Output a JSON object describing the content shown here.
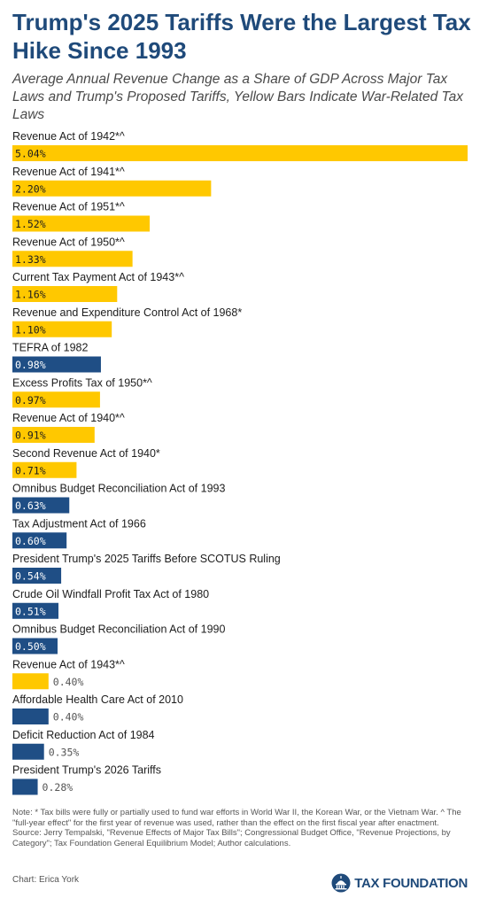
{
  "title": "Trump's 2025 Tariffs Were the Largest Tax Hike Since 1993",
  "subtitle": "Average Annual Revenue Change as a Share of GDP Across Major Tax Laws and Trump's Proposed Tariffs, Yellow Bars Indicate War-Related Tax Laws",
  "colors": {
    "war": "#ffc800",
    "non_war": "#1f4e85",
    "title": "#1f4a7a"
  },
  "chart_data": {
    "type": "bar",
    "orientation": "horizontal",
    "unit": "% of GDP",
    "xlim": [
      0,
      5.04
    ],
    "grid": false,
    "categories": [
      "Revenue Act of 1942*^",
      "Revenue Act of 1941*^",
      "Revenue Act of 1951*^",
      "Revenue Act of 1950*^",
      "Current Tax Payment Act of 1943*^",
      "Revenue and Expenditure Control Act of 1968*",
      "TEFRA of 1982",
      "Excess Profits Tax of 1950*^",
      "Revenue Act of 1940*^",
      "Second Revenue Act of 1940*",
      "Omnibus Budget Reconciliation Act of 1993",
      "Tax Adjustment Act of 1966",
      "President Trump's 2025 Tariffs Before SCOTUS Ruling",
      "Crude Oil Windfall Profit Tax Act of 1980",
      "Omnibus Budget Reconciliation Act of 1990",
      "Revenue Act of 1943*^",
      "Affordable Health Care Act of 2010",
      "Deficit Reduction Act of 1984",
      "President Trump's 2026 Tariffs"
    ],
    "values": [
      5.04,
      2.2,
      1.52,
      1.33,
      1.16,
      1.1,
      0.98,
      0.97,
      0.91,
      0.71,
      0.63,
      0.6,
      0.54,
      0.51,
      0.5,
      0.4,
      0.4,
      0.35,
      0.28
    ],
    "value_labels": [
      "5.04%",
      "2.20%",
      "1.52%",
      "1.33%",
      "1.16%",
      "1.10%",
      "0.98%",
      "0.97%",
      "0.91%",
      "0.71%",
      "0.63%",
      "0.60%",
      "0.54%",
      "0.51%",
      "0.50%",
      "0.40%",
      "0.40%",
      "0.35%",
      "0.28%"
    ],
    "war_related": [
      true,
      true,
      true,
      true,
      true,
      true,
      false,
      true,
      true,
      true,
      false,
      false,
      false,
      false,
      false,
      true,
      false,
      false,
      false
    ]
  },
  "footer": {
    "note": "Note: * Tax bills were fully or partially used to fund war efforts in World War II, the Korean War, or the Vietnam War. ^ The \"full-year effect\" for the first year of revenue was used, rather than the effect on the first fiscal year after enactment.",
    "source": "Source: Jerry Tempalski, \"Revenue Effects of Major Tax Bills\"; Congressional Budget Office, \"Revenue Projections, by Category\"; Tax Foundation General Equilibrium Model; Author calculations.",
    "credit": "Chart: Erica York",
    "brand": "TAX FOUNDATION"
  }
}
